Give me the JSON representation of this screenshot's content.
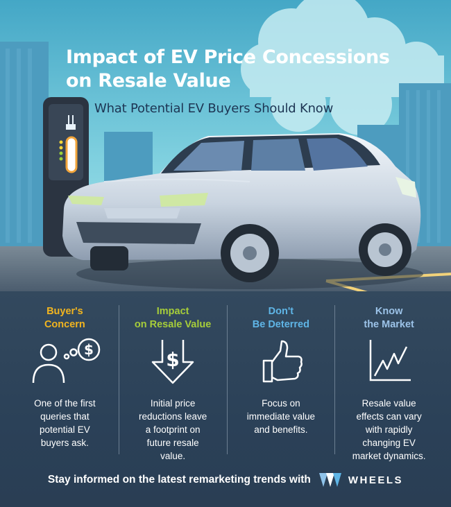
{
  "title": {
    "line1": "Impact of EV Price Concessions",
    "line2": "on Resale Value"
  },
  "subtitle": "What Potential EV Buyers Should Know",
  "columns": [
    {
      "head1": "Buyer's",
      "head2": "Concern",
      "color": "#f2b51f",
      "icon": "person-thinking-dollar-icon",
      "body": [
        "One of the first",
        "queries that",
        "potential EV",
        "buyers ask."
      ]
    },
    {
      "head1": "Impact",
      "head2": "on Resale Value",
      "color": "#a6cd3a",
      "icon": "dollar-down-arrow-icon",
      "body": [
        "Initial price",
        "reductions leave",
        "a footprint on",
        "future resale",
        "value."
      ]
    },
    {
      "head1": "Don't",
      "head2": "Be Deterred",
      "color": "#5fb5e6",
      "icon": "thumbs-up-icon",
      "body": [
        "Focus on",
        "immediate value",
        "and benefits."
      ]
    },
    {
      "head1": "Know",
      "head2": "the Market",
      "color": "#9cc3e8",
      "icon": "market-chart-icon",
      "body": [
        "Resale value",
        "effects can vary",
        "with rapidly",
        "changing EV",
        "market dynamics."
      ]
    }
  ],
  "footer": {
    "text": "Stay informed on the latest remarketing trends with",
    "brand": "WHEELS"
  },
  "colors": {
    "sky": "#6fc6d8",
    "city": "#4a9bc0",
    "road": "#5f6f7d",
    "accent": "#f2b51f"
  }
}
